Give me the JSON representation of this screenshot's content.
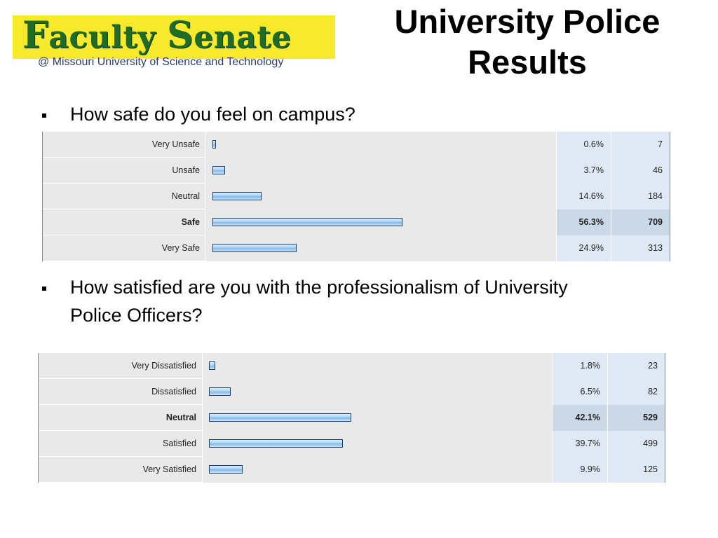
{
  "logo": {
    "word_first_cap": "F",
    "word_first_rest": "aculty",
    "word_second_cap": "S",
    "word_second_rest": "enate",
    "subtitle": "@ Missouri University of Science and Technology"
  },
  "title_line1": "University Police",
  "title_line2": "Results",
  "colors": {
    "logo_band": "#f6ea2a",
    "logo_text": "#1f6b2a",
    "bar_fill": "#a9d2f5",
    "bar_border": "#1b3d70"
  },
  "questions": [
    {
      "text": "How safe do you feel on campus?",
      "rows": [
        {
          "label": "Very Unsafe",
          "percent": "0.6%",
          "count": "7",
          "value": 0.6
        },
        {
          "label": "Unsafe",
          "percent": "3.7%",
          "count": "46",
          "value": 3.7
        },
        {
          "label": "Neutral",
          "percent": "14.6%",
          "count": "184",
          "value": 14.6
        },
        {
          "label": "Safe",
          "percent": "56.3%",
          "count": "709",
          "value": 56.3
        },
        {
          "label": "Very Safe",
          "percent": "24.9%",
          "count": "313",
          "value": 24.9
        }
      ]
    },
    {
      "text": "How satisfied are you with the professionalism of University Police Officers?",
      "rows": [
        {
          "label": "Very Dissatisfied",
          "percent": "1.8%",
          "count": "23",
          "value": 1.8
        },
        {
          "label": "Dissatisfied",
          "percent": "6.5%",
          "count": "82",
          "value": 6.5
        },
        {
          "label": "Neutral",
          "percent": "42.1%",
          "count": "529",
          "value": 42.1
        },
        {
          "label": "Satisfied",
          "percent": "39.7%",
          "count": "499",
          "value": 39.7
        },
        {
          "label": "Very Satisfied",
          "percent": "9.9%",
          "count": "125",
          "value": 9.9
        }
      ]
    }
  ]
}
